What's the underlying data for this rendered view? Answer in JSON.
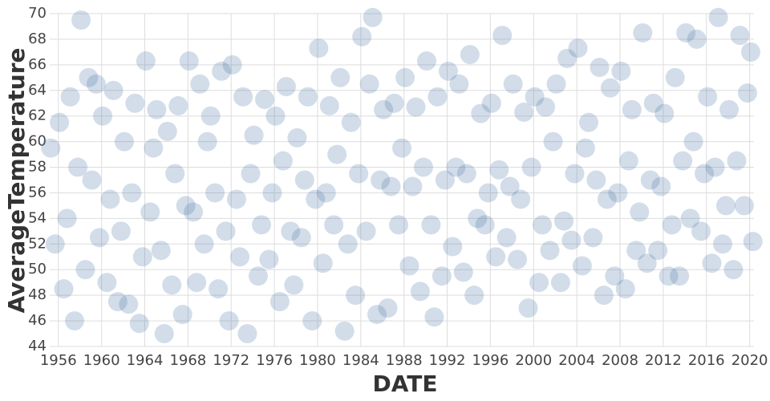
{
  "chart_data": {
    "type": "scatter",
    "x_label": "DATE",
    "y_label": "AverageTemperature",
    "color": "#4c78a8",
    "grid": true,
    "xlim": [
      1955.2,
      2020.4
    ],
    "ylim": [
      44,
      70
    ],
    "xticks": [
      1956,
      1960,
      1964,
      1968,
      1972,
      1976,
      1980,
      1984,
      1988,
      1992,
      1996,
      2000,
      2004,
      2008,
      2012,
      2016,
      2020
    ],
    "yticks": [
      44,
      46,
      48,
      50,
      52,
      54,
      56,
      58,
      60,
      62,
      64,
      66,
      68,
      70
    ],
    "x": [
      1955.3,
      1955.7,
      1956.1,
      1956.5,
      1956.8,
      1957.1,
      1957.5,
      1957.8,
      1958.1,
      1958.5,
      1958.8,
      1959.1,
      1959.5,
      1959.8,
      1960.1,
      1960.5,
      1960.8,
      1961.1,
      1961.5,
      1961.8,
      1962.1,
      1962.5,
      1962.8,
      1963.1,
      1963.5,
      1963.8,
      1964.1,
      1964.5,
      1964.8,
      1965.1,
      1965.5,
      1965.8,
      1966.1,
      1966.5,
      1966.8,
      1967.1,
      1967.5,
      1967.8,
      1968.1,
      1968.5,
      1968.8,
      1969.1,
      1969.5,
      1969.8,
      1970.1,
      1970.5,
      1970.8,
      1971.1,
      1971.5,
      1971.8,
      1972.1,
      1972.5,
      1972.8,
      1973.1,
      1973.5,
      1973.8,
      1974.1,
      1974.5,
      1974.8,
      1975.1,
      1975.5,
      1975.8,
      1976.1,
      1976.5,
      1976.8,
      1977.1,
      1977.5,
      1977.8,
      1978.1,
      1978.5,
      1978.8,
      1979.1,
      1979.5,
      1979.8,
      1980.1,
      1980.5,
      1980.8,
      1981.1,
      1981.5,
      1981.8,
      1982.1,
      1982.5,
      1982.8,
      1983.1,
      1983.5,
      1983.8,
      1984.1,
      1984.5,
      1984.8,
      1985.1,
      1985.5,
      1985.8,
      1986.1,
      1986.5,
      1986.8,
      1987.1,
      1987.5,
      1987.8,
      1988.1,
      1988.5,
      1988.8,
      1989.1,
      1989.5,
      1989.8,
      1990.1,
      1990.5,
      1990.8,
      1991.1,
      1991.5,
      1991.8,
      1992.1,
      1992.5,
      1992.8,
      1993.1,
      1993.5,
      1993.8,
      1994.1,
      1994.5,
      1994.8,
      1995.1,
      1995.5,
      1995.8,
      1996.1,
      1996.5,
      1996.8,
      1997.1,
      1997.5,
      1997.8,
      1998.1,
      1998.5,
      1998.8,
      1999.1,
      1999.5,
      1999.8,
      2000.1,
      2000.5,
      2000.8,
      2001.1,
      2001.5,
      2001.8,
      2002.1,
      2002.5,
      2002.8,
      2003.1,
      2003.5,
      2003.8,
      2004.1,
      2004.5,
      2004.8,
      2005.1,
      2005.5,
      2005.8,
      2006.1,
      2006.5,
      2006.8,
      2007.1,
      2007.5,
      2007.8,
      2008.1,
      2008.5,
      2008.8,
      2009.1,
      2009.5,
      2009.8,
      2010.1,
      2010.5,
      2010.8,
      2011.1,
      2011.5,
      2011.8,
      2012.1,
      2012.5,
      2012.8,
      2013.1,
      2013.5,
      2013.8,
      2014.1,
      2014.5,
      2014.8,
      2015.1,
      2015.5,
      2015.8,
      2016.1,
      2016.5,
      2016.8,
      2017.1,
      2017.5,
      2017.8,
      2018.1,
      2018.5,
      2018.8,
      2019.1,
      2019.5,
      2019.8,
      2020.1,
      2020.3
    ],
    "values": [
      59.5,
      52,
      61.5,
      48.5,
      54,
      63.5,
      46,
      58,
      69.5,
      50,
      65,
      57,
      64.5,
      52.5,
      62,
      49,
      55.5,
      64,
      47.5,
      53,
      60,
      47.3,
      56,
      63,
      45.8,
      51,
      66.3,
      54.5,
      59.5,
      62.5,
      51.5,
      45,
      60.8,
      48.8,
      57.5,
      62.8,
      46.5,
      55,
      66.3,
      54.5,
      49,
      64.5,
      52,
      60,
      62,
      56,
      48.5,
      65.5,
      53,
      46,
      66,
      55.5,
      51,
      63.5,
      45,
      57.5,
      60.5,
      49.5,
      53.5,
      63.3,
      50.8,
      56,
      62,
      47.5,
      58.5,
      64.3,
      53,
      48.8,
      60.3,
      52.5,
      57,
      63.5,
      46,
      55.5,
      67.3,
      50.5,
      56,
      62.8,
      53.5,
      59,
      65,
      45.2,
      52,
      61.5,
      48,
      57.5,
      68.2,
      53,
      64.5,
      69.7,
      46.5,
      57,
      62.5,
      47,
      56.5,
      63,
      53.5,
      59.5,
      65,
      50.3,
      56.5,
      62.7,
      48.3,
      58,
      66.3,
      53.5,
      46.3,
      63.5,
      49.5,
      57,
      65.5,
      51.8,
      58,
      64.5,
      49.8,
      57.5,
      66.8,
      48,
      54,
      62.2,
      53.5,
      56,
      63,
      51,
      57.8,
      68.3,
      52.5,
      56.5,
      64.5,
      50.8,
      55.5,
      62.3,
      47,
      58,
      63.5,
      49,
      53.5,
      62.7,
      51.5,
      60,
      64.5,
      49,
      53.8,
      66.5,
      52.3,
      57.5,
      67.3,
      50.3,
      59.5,
      61.5,
      52.5,
      57,
      65.8,
      48,
      55.5,
      64.2,
      49.5,
      56,
      65.5,
      48.5,
      58.5,
      62.5,
      51.5,
      54.5,
      68.5,
      50.5,
      57,
      63,
      51.5,
      56.5,
      62.2,
      49.5,
      53.5,
      65,
      49.5,
      58.5,
      68.5,
      54,
      60,
      68,
      53,
      57.5,
      63.5,
      50.5,
      58,
      69.7,
      52,
      55,
      62.5,
      50,
      58.5,
      68.3,
      55,
      63.8,
      67,
      52.2
    ]
  }
}
